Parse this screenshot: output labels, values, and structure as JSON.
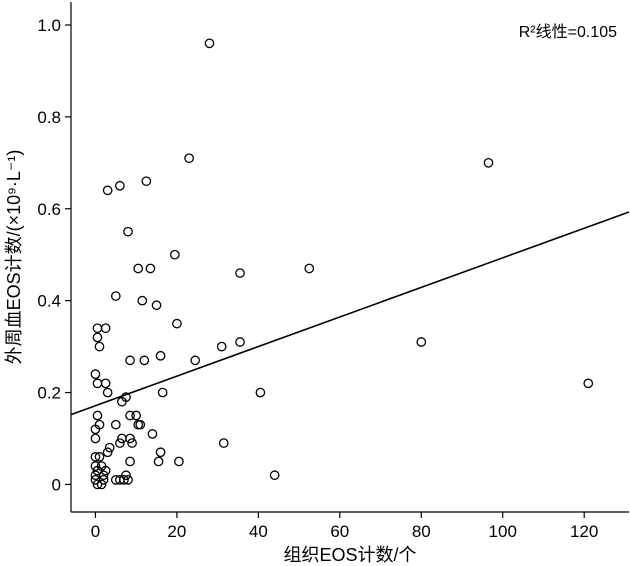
{
  "chart_data": {
    "type": "scatter",
    "title": "",
    "xlabel": "组织EOS计数/个",
    "ylabel": "外周血EOS计数/(×10⁹·L⁻¹)",
    "xlim": [
      -6,
      131
    ],
    "ylim": [
      -0.06,
      1.05
    ],
    "xticks": [
      0,
      20,
      40,
      60,
      80,
      100,
      120
    ],
    "yticks": [
      0,
      0.2,
      0.4,
      0.6,
      0.8,
      1.0
    ],
    "xtick_labels": [
      "0",
      "20",
      "40",
      "60",
      "80",
      "100",
      "120"
    ],
    "ytick_labels": [
      "0",
      "0.2",
      "0.4",
      "0.6",
      "0.8",
      "1.0"
    ],
    "annotation": "R²线性=0.105",
    "grid": false,
    "regression_line": {
      "x": [
        -6,
        131
      ],
      "y": [
        0.152,
        0.593
      ]
    },
    "points": [
      [
        28,
        0.96
      ],
      [
        23,
        0.71
      ],
      [
        96.5,
        0.7
      ],
      [
        3,
        0.64
      ],
      [
        6,
        0.65
      ],
      [
        12.5,
        0.66
      ],
      [
        8,
        0.55
      ],
      [
        10.5,
        0.47
      ],
      [
        13.5,
        0.47
      ],
      [
        19.5,
        0.5
      ],
      [
        35.5,
        0.46
      ],
      [
        52.5,
        0.47
      ],
      [
        5,
        0.41
      ],
      [
        11.5,
        0.4
      ],
      [
        15,
        0.39
      ],
      [
        20,
        0.35
      ],
      [
        0.5,
        0.34
      ],
      [
        0.5,
        0.32
      ],
      [
        1,
        0.3
      ],
      [
        2.5,
        0.34
      ],
      [
        8.5,
        0.27
      ],
      [
        12,
        0.27
      ],
      [
        16,
        0.28
      ],
      [
        24.5,
        0.27
      ],
      [
        31,
        0.3
      ],
      [
        35.5,
        0.31
      ],
      [
        80,
        0.31
      ],
      [
        0,
        0.24
      ],
      [
        0.5,
        0.22
      ],
      [
        2.5,
        0.22
      ],
      [
        3,
        0.2
      ],
      [
        7.5,
        0.19
      ],
      [
        6.5,
        0.18
      ],
      [
        16.5,
        0.2
      ],
      [
        40.5,
        0.2
      ],
      [
        121,
        0.22
      ],
      [
        0.5,
        0.15
      ],
      [
        8.5,
        0.15
      ],
      [
        10,
        0.15
      ],
      [
        0,
        0.12
      ],
      [
        1,
        0.13
      ],
      [
        5,
        0.13
      ],
      [
        10.5,
        0.13
      ],
      [
        11,
        0.13
      ],
      [
        14,
        0.11
      ],
      [
        0,
        0.1
      ],
      [
        6.5,
        0.1
      ],
      [
        8.5,
        0.1
      ],
      [
        9,
        0.09
      ],
      [
        6,
        0.09
      ],
      [
        31.5,
        0.09
      ],
      [
        3.5,
        0.08
      ],
      [
        3,
        0.07
      ],
      [
        16,
        0.07
      ],
      [
        0,
        0.06
      ],
      [
        1,
        0.06
      ],
      [
        0,
        0.04
      ],
      [
        1.5,
        0.04
      ],
      [
        2.5,
        0.03
      ],
      [
        8.5,
        0.05
      ],
      [
        15.5,
        0.05
      ],
      [
        20.5,
        0.05
      ],
      [
        0,
        0.02
      ],
      [
        0.5,
        0.03
      ],
      [
        2,
        0.02
      ],
      [
        2,
        0.01
      ],
      [
        5,
        0.01
      ],
      [
        6,
        0.01
      ],
      [
        7,
        0.01
      ],
      [
        7.5,
        0.02
      ],
      [
        8,
        0.01
      ],
      [
        0,
        0.01
      ],
      [
        0.5,
        0.0
      ],
      [
        1.5,
        0.0
      ],
      [
        44,
        0.02
      ]
    ]
  }
}
